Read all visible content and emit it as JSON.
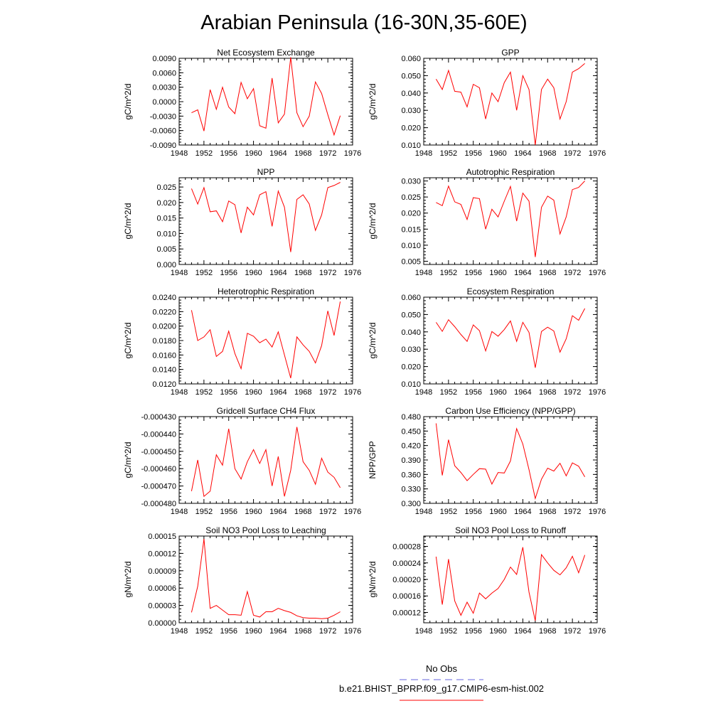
{
  "title": "Arabian Peninsula (16-30N,35-60E)",
  "x_ticks": [
    "1948",
    "1952",
    "1956",
    "1960",
    "1964",
    "1968",
    "1972",
    "1976"
  ],
  "line_color": "#ff0000",
  "obs_color": "#6666dd",
  "legend": {
    "obs_label": "No Obs",
    "model_label": "b.e21.BHIST_BPRP.f09_g17.CMIP6-esm-hist.002"
  },
  "chart_data": [
    {
      "type": "line",
      "title": "Net Ecosystem Exchange",
      "ylabel": "gC/m^2/d",
      "xlabel": "",
      "xlim": [
        1948,
        1976
      ],
      "ylim": [
        -0.009,
        0.009
      ],
      "yticks": [
        -0.009,
        -0.006,
        -0.003,
        0.0,
        0.003,
        0.006,
        0.009
      ],
      "ytick_labels": [
        "-0.0090",
        "-0.0060",
        "-0.0030",
        "0.0000",
        "0.0030",
        "0.0060",
        "0.0090"
      ],
      "x": [
        1950,
        1951,
        1952,
        1953,
        1954,
        1955,
        1956,
        1957,
        1958,
        1959,
        1960,
        1961,
        1962,
        1963,
        1964,
        1965,
        1966,
        1967,
        1968,
        1969,
        1970,
        1971,
        1972,
        1973,
        1974
      ],
      "values": [
        -0.0023,
        -0.0017,
        -0.0061,
        0.0025,
        -0.0016,
        0.003,
        -0.0011,
        -0.0025,
        0.004,
        0.0006,
        0.0027,
        -0.005,
        -0.0055,
        0.0049,
        -0.0044,
        -0.0026,
        0.0092,
        -0.0023,
        -0.0052,
        -0.003,
        0.0041,
        0.0017,
        -0.0027,
        -0.0069,
        -0.0029
      ]
    },
    {
      "type": "line",
      "title": "GPP",
      "ylabel": "gC/m^2/d",
      "xlabel": "",
      "xlim": [
        1948,
        1976
      ],
      "ylim": [
        0.01,
        0.06
      ],
      "yticks": [
        0.01,
        0.02,
        0.03,
        0.04,
        0.05,
        0.06
      ],
      "ytick_labels": [
        "0.010",
        "0.020",
        "0.030",
        "0.040",
        "0.050",
        "0.060"
      ],
      "x": [
        1950,
        1951,
        1952,
        1953,
        1954,
        1955,
        1956,
        1957,
        1958,
        1959,
        1960,
        1961,
        1962,
        1963,
        1964,
        1965,
        1966,
        1967,
        1968,
        1969,
        1970,
        1971,
        1972,
        1973,
        1974
      ],
      "values": [
        0.048,
        0.042,
        0.053,
        0.041,
        0.0405,
        0.032,
        0.045,
        0.043,
        0.025,
        0.04,
        0.035,
        0.046,
        0.052,
        0.03,
        0.05,
        0.042,
        0.01,
        0.042,
        0.048,
        0.043,
        0.025,
        0.035,
        0.052,
        0.054,
        0.057
      ]
    },
    {
      "type": "line",
      "title": "NPP",
      "ylabel": "gC/m^2/d",
      "xlabel": "",
      "xlim": [
        1948,
        1976
      ],
      "ylim": [
        0.0,
        0.028
      ],
      "yticks": [
        0.0,
        0.005,
        0.01,
        0.015,
        0.02,
        0.025
      ],
      "ytick_labels": [
        "0.000",
        "0.005",
        "0.010",
        "0.015",
        "0.020",
        "0.025"
      ],
      "x": [
        1950,
        1951,
        1952,
        1953,
        1954,
        1955,
        1956,
        1957,
        1958,
        1959,
        1960,
        1961,
        1962,
        1963,
        1964,
        1965,
        1966,
        1967,
        1968,
        1969,
        1970,
        1971,
        1972,
        1973,
        1974
      ],
      "values": [
        0.0245,
        0.0195,
        0.0248,
        0.017,
        0.0173,
        0.0138,
        0.0205,
        0.0193,
        0.0102,
        0.0185,
        0.016,
        0.0225,
        0.0235,
        0.0123,
        0.0237,
        0.0185,
        0.004,
        0.021,
        0.0225,
        0.0195,
        0.011,
        0.016,
        0.0248,
        0.0255,
        0.0265
      ]
    },
    {
      "type": "line",
      "title": "Autotrophic Respiration",
      "ylabel": "gC/m^2/d",
      "xlabel": "",
      "xlim": [
        1948,
        1976
      ],
      "ylim": [
        0.004,
        0.031
      ],
      "yticks": [
        0.005,
        0.01,
        0.015,
        0.02,
        0.025,
        0.03
      ],
      "ytick_labels": [
        "0.005",
        "0.010",
        "0.015",
        "0.020",
        "0.025",
        "0.030"
      ],
      "x": [
        1950,
        1951,
        1952,
        1953,
        1954,
        1955,
        1956,
        1957,
        1958,
        1959,
        1960,
        1961,
        1962,
        1963,
        1964,
        1965,
        1966,
        1967,
        1968,
        1969,
        1970,
        1971,
        1972,
        1973,
        1974
      ],
      "values": [
        0.0233,
        0.0223,
        0.0284,
        0.0235,
        0.0227,
        0.018,
        0.0248,
        0.0245,
        0.015,
        0.0212,
        0.0188,
        0.0237,
        0.0283,
        0.0175,
        0.0262,
        0.0237,
        0.0063,
        0.0218,
        0.0253,
        0.024,
        0.0135,
        0.0188,
        0.0273,
        0.028,
        0.03
      ]
    },
    {
      "type": "line",
      "title": "Heterotrophic Respiration",
      "ylabel": "gC/m^2/d",
      "xlabel": "",
      "xlim": [
        1948,
        1976
      ],
      "ylim": [
        0.012,
        0.024
      ],
      "yticks": [
        0.012,
        0.014,
        0.016,
        0.018,
        0.02,
        0.022,
        0.024
      ],
      "ytick_labels": [
        "0.0120",
        "0.0140",
        "0.0160",
        "0.0180",
        "0.0200",
        "0.0220",
        "0.0240"
      ],
      "x": [
        1950,
        1951,
        1952,
        1953,
        1954,
        1955,
        1956,
        1957,
        1958,
        1959,
        1960,
        1961,
        1962,
        1963,
        1964,
        1965,
        1966,
        1967,
        1968,
        1969,
        1970,
        1971,
        1972,
        1973,
        1974
      ],
      "values": [
        0.0222,
        0.018,
        0.0185,
        0.0195,
        0.0158,
        0.0165,
        0.0193,
        0.0162,
        0.0141,
        0.019,
        0.0186,
        0.0177,
        0.0182,
        0.0171,
        0.0192,
        0.016,
        0.0128,
        0.0185,
        0.0174,
        0.0165,
        0.0149,
        0.0173,
        0.0221,
        0.0187,
        0.0234
      ]
    },
    {
      "type": "line",
      "title": "Ecosystem Respiration",
      "ylabel": "gC/m^2/d",
      "xlabel": "",
      "xlim": [
        1948,
        1976
      ],
      "ylim": [
        0.01,
        0.06
      ],
      "yticks": [
        0.01,
        0.02,
        0.03,
        0.04,
        0.05,
        0.06
      ],
      "ytick_labels": [
        "0.010",
        "0.020",
        "0.030",
        "0.040",
        "0.050",
        "0.060"
      ],
      "x": [
        1950,
        1951,
        1952,
        1953,
        1954,
        1955,
        1956,
        1957,
        1958,
        1959,
        1960,
        1961,
        1962,
        1963,
        1964,
        1965,
        1966,
        1967,
        1968,
        1969,
        1970,
        1971,
        1972,
        1973,
        1974
      ],
      "values": [
        0.0455,
        0.0403,
        0.047,
        0.043,
        0.0385,
        0.0345,
        0.044,
        0.0407,
        0.029,
        0.0402,
        0.0375,
        0.0413,
        0.0463,
        0.0345,
        0.0455,
        0.0397,
        0.0193,
        0.0402,
        0.0427,
        0.0405,
        0.0283,
        0.036,
        0.0493,
        0.0467,
        0.0535
      ]
    },
    {
      "type": "line",
      "title": "Gridcell Surface CH4 Flux",
      "ylabel": "gC/m^2/d",
      "xlabel": "",
      "xlim": [
        1948,
        1976
      ],
      "ylim": [
        -0.00048,
        -0.00043
      ],
      "yticks": [
        -0.00048,
        -0.00047,
        -0.00046,
        -0.00045,
        -0.00044,
        -0.00043
      ],
      "ytick_labels": [
        "-0.000480",
        "-0.000470",
        "-0.000460",
        "-0.000450",
        "-0.000440",
        "-0.000430"
      ],
      "x": [
        1950,
        1951,
        1952,
        1953,
        1954,
        1955,
        1956,
        1957,
        1958,
        1959,
        1960,
        1961,
        1962,
        1963,
        1964,
        1965,
        1966,
        1967,
        1968,
        1969,
        1970,
        1971,
        1972,
        1973,
        1974
      ],
      "values": [
        -0.000473,
        -0.000455,
        -0.000476,
        -0.000473,
        -0.000452,
        -0.000458,
        -0.000437,
        -0.00046,
        -0.000466,
        -0.000456,
        -0.000449,
        -0.000457,
        -0.000449,
        -0.00047,
        -0.000453,
        -0.000476,
        -0.000461,
        -0.000436,
        -0.000456,
        -0.000461,
        -0.000469,
        -0.000454,
        -0.000462,
        -0.000465,
        -0.000471
      ]
    },
    {
      "type": "line",
      "title": "Carbon Use Efficiency (NPP/GPP)",
      "ylabel": "NPP/GPP",
      "xlabel": "",
      "xlim": [
        1948,
        1976
      ],
      "ylim": [
        0.3,
        0.48
      ],
      "yticks": [
        0.3,
        0.33,
        0.36,
        0.39,
        0.42,
        0.45,
        0.48
      ],
      "ytick_labels": [
        "0.300",
        "0.330",
        "0.360",
        "0.390",
        "0.420",
        "0.450",
        "0.480"
      ],
      "x": [
        1950,
        1951,
        1952,
        1953,
        1954,
        1955,
        1956,
        1957,
        1958,
        1959,
        1960,
        1961,
        1962,
        1963,
        1964,
        1965,
        1966,
        1967,
        1968,
        1969,
        1970,
        1971,
        1972,
        1973,
        1974
      ],
      "values": [
        0.466,
        0.358,
        0.432,
        0.378,
        0.364,
        0.347,
        0.36,
        0.372,
        0.371,
        0.34,
        0.364,
        0.363,
        0.388,
        0.455,
        0.423,
        0.37,
        0.31,
        0.35,
        0.373,
        0.367,
        0.383,
        0.357,
        0.384,
        0.377,
        0.355
      ]
    },
    {
      "type": "line",
      "title": "Soil NO3 Pool Loss to Leaching",
      "ylabel": "gN/m^2/d",
      "xlabel": "",
      "xlim": [
        1948,
        1976
      ],
      "ylim": [
        0.0,
        0.00015
      ],
      "yticks": [
        0.0,
        3e-05,
        6e-05,
        9e-05,
        0.00012,
        0.00015
      ],
      "ytick_labels": [
        "0.00000",
        "0.00003",
        "0.00006",
        "0.00009",
        "0.00012",
        "0.00015"
      ],
      "x": [
        1950,
        1951,
        1952,
        1953,
        1954,
        1955,
        1956,
        1957,
        1958,
        1959,
        1960,
        1961,
        1962,
        1963,
        1964,
        1965,
        1966,
        1967,
        1968,
        1969,
        1970,
        1971,
        1972,
        1973,
        1974
      ],
      "values": [
        1.8e-05,
        6.3e-05,
        0.000145,
        2.5e-05,
        3e-05,
        2.2e-05,
        1.4e-05,
        1.4e-05,
        1.3e-05,
        5.4e-05,
        1.3e-05,
        1e-05,
        1.9e-05,
        1.9e-05,
        2.5e-05,
        2.1e-05,
        1.8e-05,
        1.2e-05,
        9e-06,
        8e-06,
        8e-06,
        7e-06,
        8e-06,
        1.3e-05,
        1.9e-05
      ]
    },
    {
      "type": "line",
      "title": "Soil NO3 Pool Loss to Runoff",
      "ylabel": "gN/m^2/d",
      "xlabel": "",
      "xlim": [
        1948,
        1976
      ],
      "ylim": [
        9.5e-05,
        0.000305
      ],
      "yticks": [
        0.00012,
        0.00016,
        0.0002,
        0.00024,
        0.00028
      ],
      "ytick_labels": [
        "0.00012",
        "0.00016",
        "0.00020",
        "0.00024",
        "0.00028"
      ],
      "x": [
        1950,
        1951,
        1952,
        1953,
        1954,
        1955,
        1956,
        1957,
        1958,
        1959,
        1960,
        1961,
        1962,
        1963,
        1964,
        1965,
        1966,
        1967,
        1968,
        1969,
        1970,
        1971,
        1972,
        1973,
        1974
      ],
      "values": [
        0.000255,
        0.000139,
        0.000249,
        0.000148,
        0.000113,
        0.000145,
        0.000118,
        0.000167,
        0.000153,
        0.000167,
        0.000178,
        0.0002,
        0.00023,
        0.000212,
        0.000278,
        0.000169,
        0.0001,
        0.00026,
        0.00024,
        0.000222,
        0.000211,
        0.000228,
        0.000256,
        0.000216,
        0.000259
      ]
    }
  ]
}
